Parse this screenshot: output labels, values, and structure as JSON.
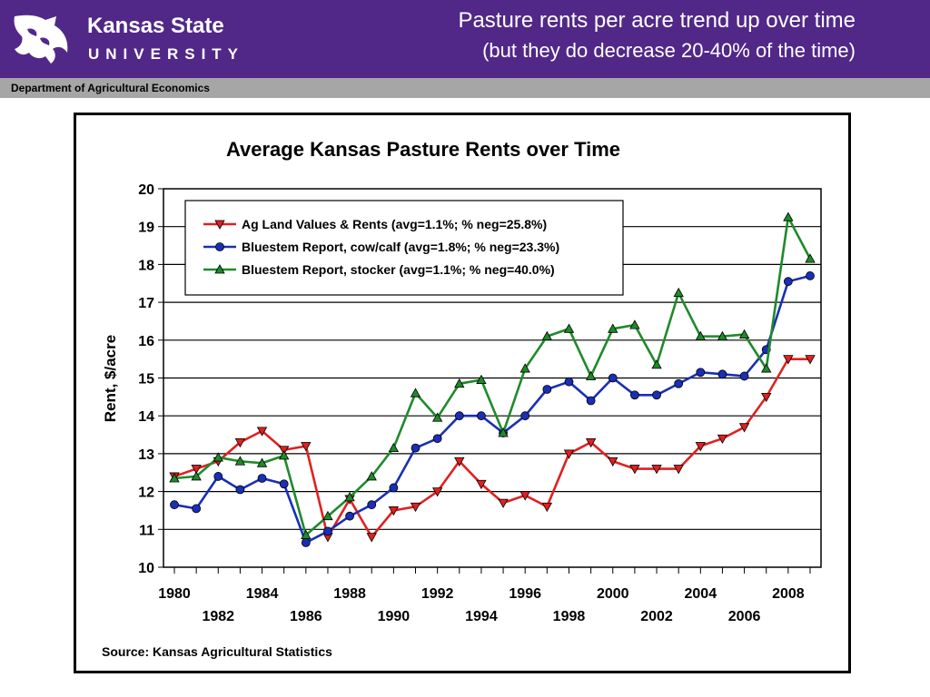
{
  "header": {
    "university_name": "Kansas State",
    "university_sub": "UNIVERSITY",
    "slide_title": "Pasture rents per acre trend up over time",
    "slide_subtitle": "(but they do decrease 20-40% of the time)",
    "department": "Department of Agricultural Economics",
    "colors": {
      "brand_purple": "#512888",
      "dept_bar": "#a6a6a6"
    }
  },
  "chart_data": {
    "type": "line",
    "title": "Average Kansas Pasture Rents over Time",
    "xlabel": "",
    "ylabel": "Rent, $/acre",
    "ylim": [
      10,
      20
    ],
    "yticks": [
      "10",
      "11",
      "12",
      "13",
      "14",
      "15",
      "16",
      "17",
      "18",
      "19",
      "20"
    ],
    "x": [
      1980,
      1981,
      1982,
      1983,
      1984,
      1985,
      1986,
      1987,
      1988,
      1989,
      1990,
      1991,
      1992,
      1993,
      1994,
      1995,
      1996,
      1997,
      1998,
      1999,
      2000,
      2001,
      2002,
      2003,
      2004,
      2005,
      2006,
      2007,
      2008,
      2009
    ],
    "xticks_upper": [
      "1980",
      "1984",
      "1988",
      "1992",
      "1996",
      "2000",
      "2004",
      "2008"
    ],
    "xticks_lower": [
      "1982",
      "1986",
      "1990",
      "1994",
      "1998",
      "2002",
      "2006"
    ],
    "legend_position": "top-left",
    "series": [
      {
        "name": "Ag Land Values & Rents (avg=1.1%; % neg=25.8%)",
        "color": "#e02020",
        "marker": "triangle-down",
        "values": [
          12.4,
          12.6,
          12.8,
          13.3,
          13.6,
          13.1,
          13.2,
          10.8,
          11.8,
          10.8,
          11.5,
          11.6,
          12.0,
          12.8,
          12.2,
          11.7,
          11.9,
          11.6,
          13.0,
          13.3,
          12.8,
          12.6,
          12.6,
          12.6,
          13.2,
          13.4,
          13.7,
          14.5,
          15.5,
          15.5
        ]
      },
      {
        "name": "Bluestem Report, cow/calf (avg=1.8%; % neg=23.3%)",
        "color": "#1a2fb5",
        "marker": "circle",
        "values": [
          11.65,
          11.55,
          12.4,
          12.05,
          12.35,
          12.2,
          10.65,
          10.95,
          11.35,
          11.65,
          12.1,
          13.15,
          13.4,
          14.0,
          14.0,
          13.55,
          14.0,
          14.7,
          14.9,
          14.4,
          15.0,
          14.55,
          14.55,
          14.85,
          15.15,
          15.1,
          15.05,
          15.75,
          17.55,
          17.7
        ]
      },
      {
        "name": "Bluestem Report, stocker (avg=1.1%; % neg=40.0%)",
        "color": "#1f8a2a",
        "marker": "triangle-up",
        "values": [
          12.35,
          12.4,
          12.9,
          12.8,
          12.75,
          12.95,
          10.85,
          11.35,
          11.85,
          12.4,
          13.15,
          14.6,
          13.95,
          14.85,
          14.95,
          13.55,
          15.25,
          16.1,
          16.3,
          15.05,
          16.3,
          16.4,
          15.35,
          17.25,
          16.1,
          16.1,
          16.15,
          15.25,
          19.25,
          18.15
        ]
      }
    ],
    "source": "Source:  Kansas Agricultural Statistics"
  }
}
